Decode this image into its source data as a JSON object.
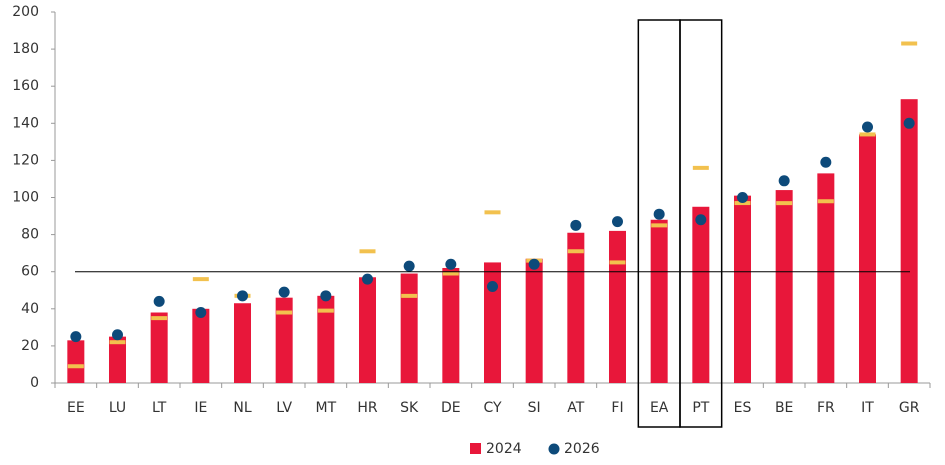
{
  "chart_data": {
    "type": "bar",
    "categories": [
      "EE",
      "LU",
      "LT",
      "IE",
      "NL",
      "LV",
      "MT",
      "HR",
      "SK",
      "DE",
      "CY",
      "SI",
      "AT",
      "FI",
      "EA",
      "PT",
      "ES",
      "BE",
      "FR",
      "IT",
      "GR"
    ],
    "series": [
      {
        "name": "2024",
        "color": "#e8173a",
        "kind": "bar",
        "values": [
          23,
          25,
          38,
          40,
          43,
          46,
          47,
          57,
          59,
          62,
          65,
          67,
          81,
          82,
          88,
          95,
          101,
          104,
          113,
          134,
          153
        ]
      },
      {
        "name": "2026",
        "color": "#0d4a7a",
        "kind": "dot",
        "values": [
          25,
          26,
          44,
          38,
          47,
          49,
          47,
          56,
          63,
          64,
          52,
          64,
          85,
          87,
          91,
          88,
          100,
          109,
          119,
          138,
          140
        ]
      },
      {
        "color": "#f2c14e",
        "kind": "dash",
        "values": [
          9,
          22,
          35,
          56,
          47,
          38,
          39,
          71,
          47,
          59,
          92,
          66,
          71,
          65,
          85,
          116,
          97,
          97,
          98,
          134,
          183
        ]
      }
    ],
    "ylim": [
      0,
      200
    ],
    "yticks": [
      0,
      20,
      40,
      60,
      80,
      100,
      120,
      140,
      160,
      180,
      200
    ],
    "reference_line": 60,
    "highlight_indices": [
      14,
      15
    ]
  }
}
